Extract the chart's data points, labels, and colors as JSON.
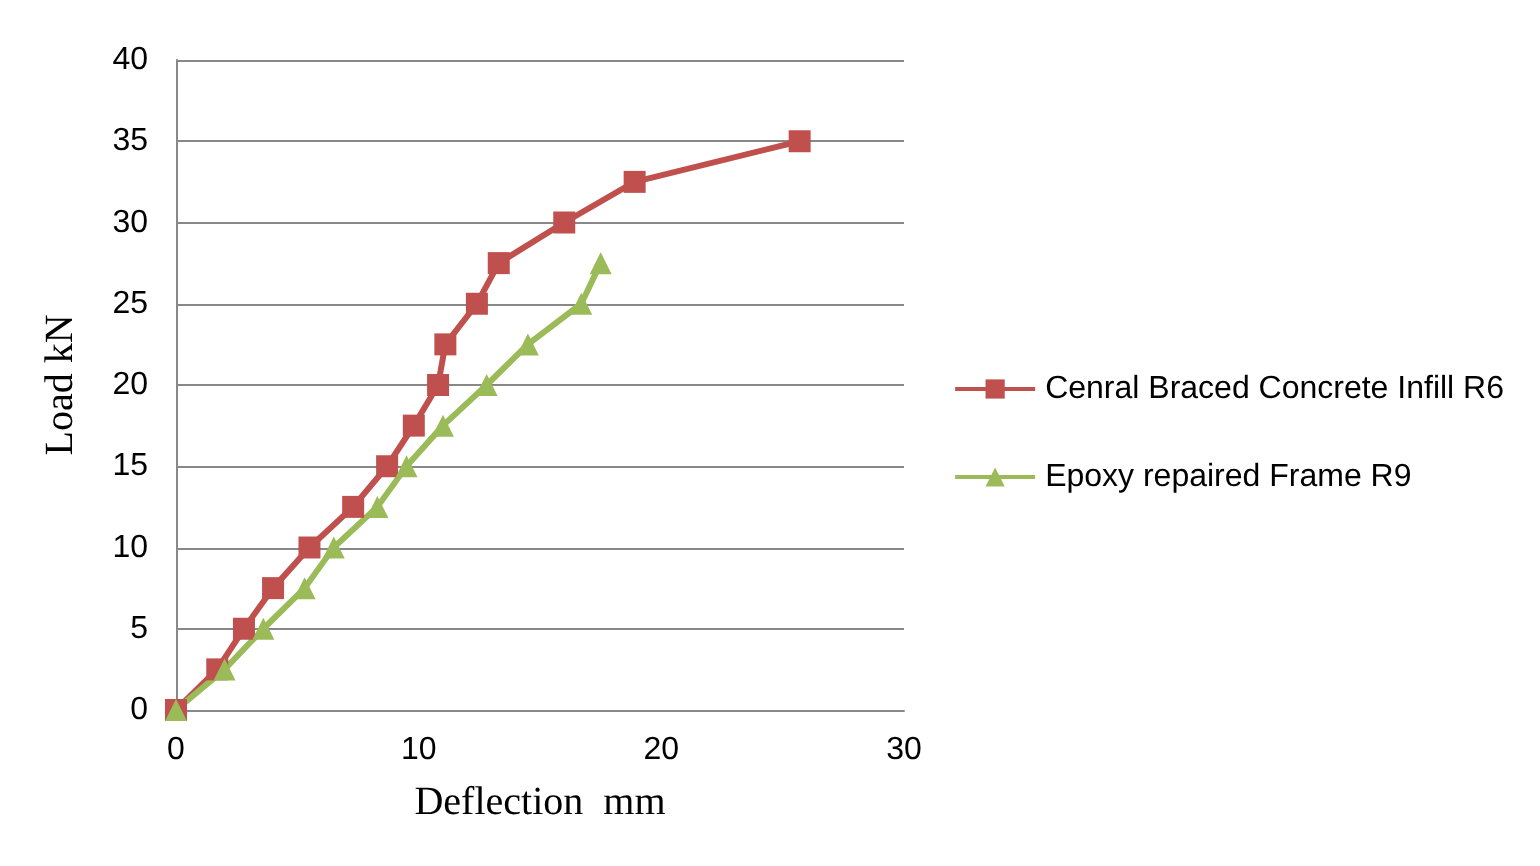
{
  "chart_data": {
    "type": "line",
    "xlabel": "Deflection  mm",
    "ylabel": "Load kN",
    "xlim": [
      0,
      30
    ],
    "xticks": [
      0,
      10,
      20,
      30
    ],
    "ylim": [
      0,
      40
    ],
    "yticks": [
      0,
      5,
      10,
      15,
      20,
      25,
      30,
      35,
      40
    ],
    "grid": "y",
    "legend": "right",
    "line_style": "solid",
    "series": [
      {
        "name": "Cenral Braced Concrete Infill R6",
        "color": "#c0504d",
        "marker": "square",
        "x": [
          0,
          1.7,
          2.8,
          4.0,
          5.5,
          7.3,
          8.7,
          9.8,
          10.8,
          11.1,
          12.4,
          13.3,
          16.0,
          18.9,
          25.7
        ],
        "values": [
          0,
          2.5,
          5,
          7.5,
          10,
          12.5,
          15,
          17.5,
          20,
          22.5,
          25,
          27.5,
          30,
          32.5,
          35
        ]
      },
      {
        "name": "Epoxy repaired Frame R9",
        "color": "#9bbb59",
        "marker": "triangle",
        "x": [
          0,
          2.0,
          3.6,
          5.3,
          6.5,
          8.3,
          9.5,
          11.0,
          12.8,
          14.5,
          16.7,
          17.5
        ],
        "values": [
          0,
          2.5,
          5,
          7.5,
          10,
          12.5,
          15,
          17.5,
          20,
          22.5,
          25,
          27.5
        ]
      }
    ]
  }
}
